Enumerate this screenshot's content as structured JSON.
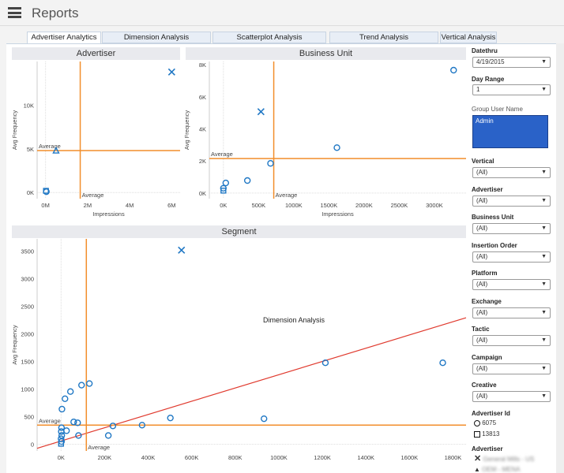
{
  "header": {
    "title": "Reports",
    "menu_icon": "hamburger-icon"
  },
  "tabs": [
    {
      "label": "Advertiser Analytics",
      "active": true
    },
    {
      "label": "Dimension Analysis"
    },
    {
      "label": "Scatterplot Analysis"
    },
    {
      "label": "Trend Analysis"
    },
    {
      "label": "Vertical Analysis"
    }
  ],
  "colors": {
    "marker": "#1f77c4",
    "average": "#f28e2b",
    "trend": "#e03a2e",
    "selected": "#2a62c8"
  },
  "chart_data": [
    {
      "type": "scatter",
      "title": "Advertiser",
      "xlabel": "Impressions",
      "ylabel": "Avg Frequency",
      "xlim": [
        -0.4,
        6.4
      ],
      "ylim": [
        -700,
        15000
      ],
      "xticks": [
        "0M",
        "2M",
        "4M",
        "6M"
      ],
      "xtick_vals": [
        0,
        2,
        4,
        6
      ],
      "yticks": [
        "0K",
        "5K",
        "10K"
      ],
      "ytick_vals": [
        0,
        5000,
        10000
      ],
      "x_unit": "M",
      "points": [
        {
          "x": 6.0,
          "y": 13800,
          "shape": "x"
        },
        {
          "x": 0.5,
          "y": 4800,
          "shape": "triangle"
        },
        {
          "x": 0.02,
          "y": 200,
          "shape": "square"
        },
        {
          "x": 0.04,
          "y": 100,
          "shape": "circle"
        }
      ],
      "avg_x": 1.65,
      "avg_y": 4800,
      "avg_label": "Average"
    },
    {
      "type": "scatter",
      "title": "Business Unit",
      "xlabel": "Impressions",
      "ylabel": "Avg Frequency",
      "xlim": [
        -200,
        3450
      ],
      "ylim": [
        -350,
        8200
      ],
      "xticks": [
        "0K",
        "500K",
        "1000K",
        "1500K",
        "2000K",
        "2500K",
        "3000K"
      ],
      "xtick_vals": [
        0,
        500,
        1000,
        1500,
        2000,
        2500,
        3000
      ],
      "yticks": [
        "0K",
        "2K",
        "4K",
        "6K",
        "8K"
      ],
      "ytick_vals": [
        0,
        2000,
        4000,
        6000,
        8000
      ],
      "points": [
        {
          "x": 3273,
          "y": 7660,
          "shape": "circle"
        },
        {
          "x": 534,
          "y": 5070,
          "shape": "x"
        },
        {
          "x": 1614,
          "y": 2830,
          "shape": "circle"
        },
        {
          "x": 670,
          "y": 1850,
          "shape": "circle"
        },
        {
          "x": 341,
          "y": 780,
          "shape": "circle"
        },
        {
          "x": 34,
          "y": 630,
          "shape": "circle"
        },
        {
          "x": 0,
          "y": 300,
          "shape": "circle"
        },
        {
          "x": 0,
          "y": 150,
          "shape": "square"
        }
      ],
      "avg_x": 716,
      "avg_y": 2150,
      "avg_label": "Average"
    },
    {
      "type": "scatter",
      "title": "Segment",
      "xlabel": "",
      "ylabel": "Avg Frequency",
      "xlim": [
        -110,
        1860
      ],
      "ylim": [
        -120,
        3720
      ],
      "xticks": [
        "0K",
        "200K",
        "400K",
        "600K",
        "800K",
        "1000K",
        "1200K",
        "1400K",
        "1600K",
        "1800K"
      ],
      "xtick_vals": [
        0,
        200,
        400,
        600,
        800,
        1000,
        1200,
        1400,
        1600,
        1800
      ],
      "yticks": [
        "0",
        "500",
        "1000",
        "1500",
        "2000",
        "2500",
        "3000",
        "3500"
      ],
      "ytick_vals": [
        0,
        500,
        1000,
        1500,
        2000,
        2500,
        3000,
        3500
      ],
      "points": [
        {
          "x": 553,
          "y": 3516,
          "shape": "x"
        },
        {
          "x": 1753,
          "y": 1476
        },
        {
          "x": 1214,
          "y": 1476
        },
        {
          "x": 932,
          "y": 463
        },
        {
          "x": 502,
          "y": 477
        },
        {
          "x": 372,
          "y": 347
        },
        {
          "x": 238,
          "y": 333
        },
        {
          "x": 217,
          "y": 159
        },
        {
          "x": 130,
          "y": 1100
        },
        {
          "x": 94,
          "y": 1071
        },
        {
          "x": 43,
          "y": 955
        },
        {
          "x": 18,
          "y": 825
        },
        {
          "x": 4,
          "y": 637
        },
        {
          "x": 58,
          "y": 405
        },
        {
          "x": 76,
          "y": 390
        },
        {
          "x": 25,
          "y": 246
        },
        {
          "x": 80,
          "y": 159
        },
        {
          "x": 2,
          "y": 300
        },
        {
          "x": 1,
          "y": 230
        },
        {
          "x": 3,
          "y": 160
        },
        {
          "x": 0,
          "y": 100
        },
        {
          "x": 2,
          "y": 50
        },
        {
          "x": 0,
          "y": 10,
          "shape": "square"
        }
      ],
      "avg_x": 116,
      "avg_y": 347,
      "avg_label": "Average",
      "trend": {
        "intercept": 60,
        "slope": 1.2
      },
      "annotation": "Dimension Analysis"
    }
  ],
  "filters": {
    "datethru": {
      "label": "Datethru",
      "value": "4/19/2015"
    },
    "day_range": {
      "label": "Day Range",
      "value": "1"
    },
    "group_user_name": {
      "label": "Group User Name",
      "value": "Admin"
    },
    "items": [
      {
        "label": "Vertical",
        "value": "(All)"
      },
      {
        "label": "Advertiser",
        "value": "(All)"
      },
      {
        "label": "Business Unit",
        "value": "(All)"
      },
      {
        "label": "Insertion Order",
        "value": "(All)"
      },
      {
        "label": "Platform",
        "value": "(All)"
      },
      {
        "label": "Exchange",
        "value": "(All)"
      },
      {
        "label": "Tactic",
        "value": "(All)"
      },
      {
        "label": "Campaign",
        "value": "(All)"
      },
      {
        "label": "Creative",
        "value": "(All)"
      }
    ]
  },
  "legend": {
    "advertiser_id": {
      "title": "Advertiser Id",
      "items": [
        {
          "label": "6075",
          "shape": "circle"
        },
        {
          "label": "13813",
          "shape": "square"
        }
      ]
    },
    "advertiser": {
      "title": "Advertiser",
      "items": [
        {
          "label": "General Mills - US",
          "shape": "x"
        },
        {
          "label": "OEM - MENA",
          "shape": "triangle"
        }
      ]
    }
  }
}
